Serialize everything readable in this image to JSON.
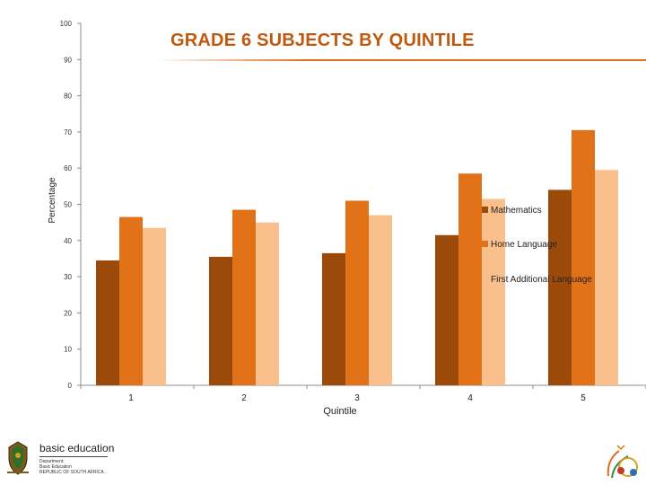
{
  "chart_data": {
    "type": "bar",
    "title": "GRADE 6 SUBJECTS BY QUINTILE",
    "xlabel": "Quintile",
    "ylabel": "Percentage",
    "ylim": [
      0,
      100
    ],
    "yticks": [
      "0",
      "10",
      "20",
      "30",
      "40",
      "50",
      "60",
      "70",
      "80",
      "90",
      "100"
    ],
    "categories": [
      "1",
      "2",
      "3",
      "4",
      "5"
    ],
    "series": [
      {
        "name": "Mathematics",
        "color": "#9b4a0a",
        "values": [
          34.5,
          35.5,
          36.5,
          41.5,
          54
        ]
      },
      {
        "name": "Home Language",
        "color": "#e27218",
        "values": [
          46.5,
          48.5,
          51,
          58.5,
          70.5
        ]
      },
      {
        "name": "First Additional Language",
        "color": "#f9c08e",
        "values": [
          43.5,
          45,
          47,
          51.5,
          59.5
        ]
      }
    ],
    "grid": false,
    "legend": "right"
  },
  "logo": {
    "line1": "basic education",
    "line2": "Department:",
    "line3": "Basic Education",
    "line4": "REPUBLIC OF SOUTH AFRICA"
  },
  "colors": {
    "title": "#c0590f",
    "axis": "#8c8c8c"
  }
}
